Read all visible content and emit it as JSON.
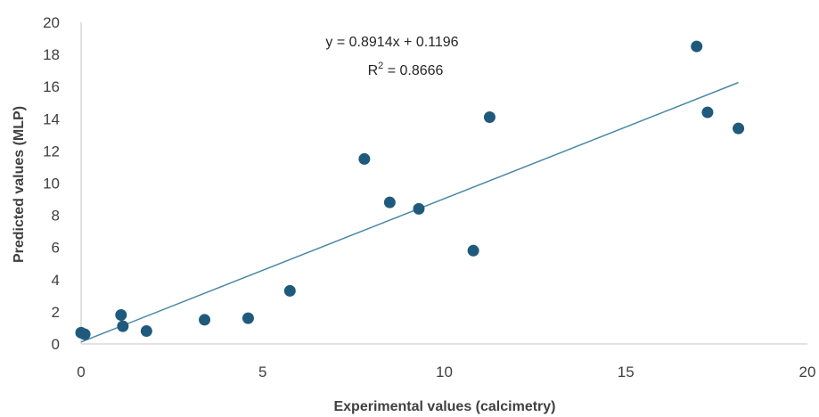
{
  "chart_data": {
    "type": "scatter",
    "xlabel": "Experimental values (calcimetry)",
    "ylabel": "Predicted values (MLP)",
    "xlim": [
      0,
      20
    ],
    "ylim": [
      0,
      20
    ],
    "xticks": [
      0,
      5,
      10,
      15,
      20
    ],
    "yticks": [
      0,
      2,
      4,
      6,
      8,
      10,
      12,
      14,
      16,
      18,
      20
    ],
    "grid": false,
    "colors": {
      "points": "#1f5a7d",
      "trendline": "#4a89a6",
      "axis": "#d9d9d9"
    },
    "points": [
      {
        "x": 0.0,
        "y": 0.7
      },
      {
        "x": 0.1,
        "y": 0.6
      },
      {
        "x": 1.1,
        "y": 1.8
      },
      {
        "x": 1.15,
        "y": 1.1
      },
      {
        "x": 1.8,
        "y": 0.8
      },
      {
        "x": 3.4,
        "y": 1.5
      },
      {
        "x": 4.6,
        "y": 1.6
      },
      {
        "x": 5.75,
        "y": 3.3
      },
      {
        "x": 7.8,
        "y": 11.5
      },
      {
        "x": 8.5,
        "y": 8.8
      },
      {
        "x": 9.3,
        "y": 8.4
      },
      {
        "x": 10.8,
        "y": 5.8
      },
      {
        "x": 11.25,
        "y": 14.1
      },
      {
        "x": 16.95,
        "y": 18.5
      },
      {
        "x": 17.25,
        "y": 14.4
      },
      {
        "x": 18.1,
        "y": 13.4
      }
    ],
    "trendline": {
      "slope": 0.8914,
      "intercept": 0.1196,
      "x_range": [
        0,
        18.1
      ],
      "equation_label": "y = 0.8914x + 0.1196",
      "r2_prefix": "R",
      "r2_exponent": "2",
      "r2_value": " = 0.8666"
    }
  }
}
